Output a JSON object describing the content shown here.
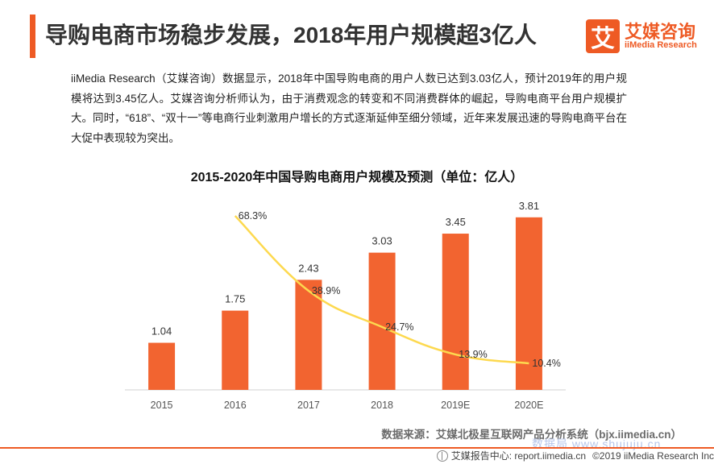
{
  "header": {
    "title": "导购电商市场稳步发展，2018年用户规模超3亿人",
    "logo_mark": "艾",
    "logo_cn": "艾媒咨询",
    "logo_en": "iiMedia Research",
    "accent_color": "#ee5a24"
  },
  "intro_text": "iiMedia Research（艾媒咨询）数据显示，2018年中国导购电商的用户人数已达到3.03亿人，预计2019年的用户规模将达到3.45亿人。艾媒咨询分析师认为，由于消费观念的转变和不同消费群体的崛起，导购电商平台用户规模扩大。同时，“618”、“双十一”等电商行业刺激用户增长的方式逐渐延伸至细分领域，近年来发展迅速的导购电商平台在大促中表现较为突出。",
  "chart_data": {
    "type": "bar",
    "title": "2015-2020年中国导购电商用户规模及预测（单位：亿人）",
    "categories": [
      "2015",
      "2016",
      "2017",
      "2018",
      "2019E",
      "2020E"
    ],
    "series": [
      {
        "type": "bar",
        "values": [
          1.04,
          1.75,
          2.43,
          3.03,
          3.45,
          3.81
        ],
        "color": "#f26430"
      },
      {
        "type": "line",
        "values": [
          null,
          68.3,
          38.9,
          24.7,
          13.9,
          10.4
        ],
        "color": "#fdd94f"
      }
    ],
    "bar_labels": [
      "1.04",
      "1.75",
      "2.43",
      "3.03",
      "3.45",
      "3.81"
    ],
    "line_labels": [
      "",
      "68.3%",
      "38.9%",
      "24.7%",
      "13.9%",
      "10.4%"
    ],
    "ylim": [
      0,
      4.5
    ],
    "y2lim": [
      0,
      80
    ],
    "grid": false,
    "legend": "none"
  },
  "footer": {
    "source": "数据来源：艾媒北极星互联网产品分析系统（bjx.iimedia.cn）",
    "watermark": "数据局 www.shujuju.cn",
    "report_center": "艾媒报告中心: report.iimedia.cn",
    "copyright": "©2019  iiMedia Research  Inc"
  }
}
